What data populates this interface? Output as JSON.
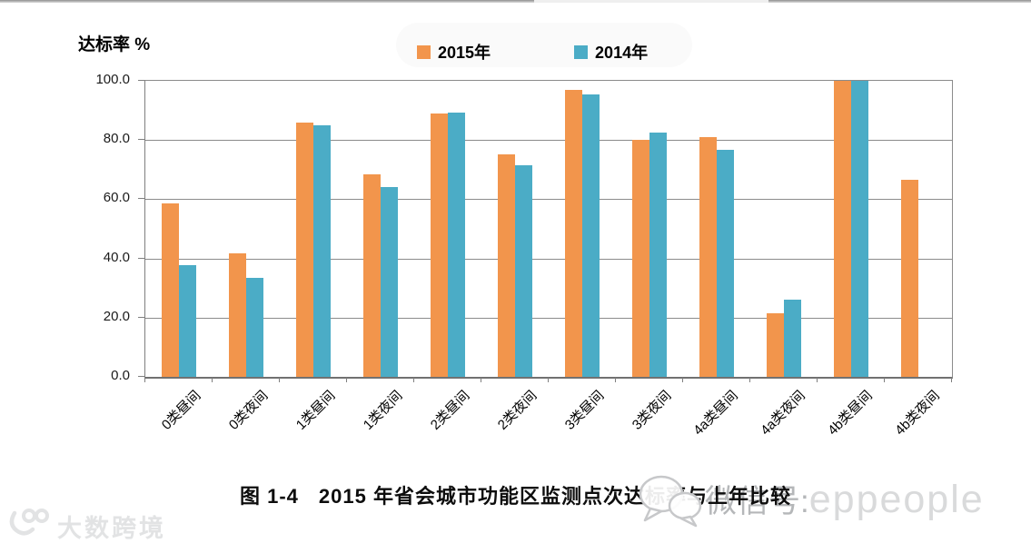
{
  "chart_data": {
    "type": "bar",
    "title": "",
    "ylabel": "达标率 %",
    "xlabel": "",
    "categories": [
      "0类昼间",
      "0类夜间",
      "1类昼间",
      "1类夜间",
      "2类昼间",
      "2类夜间",
      "3类昼间",
      "3类夜间",
      "4a类昼间",
      "4a类夜间",
      "4b类昼间",
      "4b类夜间"
    ],
    "series": [
      {
        "name": "2015年",
        "color": "#F2954C",
        "values": [
          58.5,
          41.7,
          86.0,
          68.3,
          89.0,
          75.2,
          97.0,
          80.0,
          81.0,
          21.5,
          100.0,
          66.7
        ]
      },
      {
        "name": "2014年",
        "color": "#4BACC6",
        "values": [
          37.8,
          33.5,
          85.0,
          64.2,
          89.4,
          71.5,
          95.5,
          82.6,
          76.6,
          26.0,
          100.0,
          null
        ]
      }
    ],
    "ylim": [
      0,
      100
    ],
    "yticks": [
      "100.0",
      "80.0",
      "60.0",
      "40.0",
      "20.0",
      "0.0"
    ],
    "grid": true,
    "legend_position": "top-center"
  },
  "caption": {
    "figure_label": "图 1-4",
    "text": "2015 年省会城市功能区监测点次达标率与上年比较"
  },
  "watermarks": {
    "wechat_label": "微信号:",
    "wechat_id": "eppeople",
    "corner_logo": "大数跨境"
  },
  "colors": {
    "series_2015": "#F2954C",
    "series_2014": "#4BACC6",
    "gridline": "#8B8B8B",
    "watermark_gray": "#B5B7B9",
    "corner_logo_gray": "#E2E3E4"
  }
}
